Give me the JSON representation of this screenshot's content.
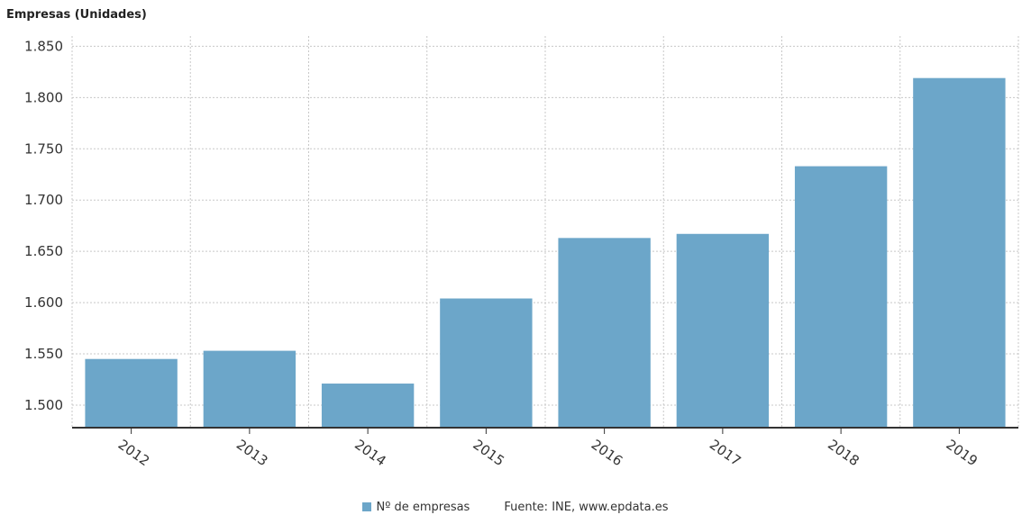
{
  "chart_data": {
    "type": "bar",
    "ylabel": "Empresas (Unidades)",
    "categories": [
      "2012",
      "2013",
      "2014",
      "2015",
      "2016",
      "2017",
      "2018",
      "2019"
    ],
    "series": [
      {
        "name": "Nº de empresas",
        "values": [
          1545,
          1553,
          1521,
          1604,
          1663,
          1667,
          1733,
          1819
        ]
      }
    ],
    "ylim": [
      1478,
      1860
    ],
    "yticks": [
      1500,
      1550,
      1600,
      1650,
      1700,
      1750,
      1800,
      1850
    ],
    "ytick_labels": [
      "1.500",
      "1.550",
      "1.600",
      "1.650",
      "1.700",
      "1.750",
      "1.800",
      "1.850"
    ],
    "grid": true,
    "legend_position": "bottom",
    "colors": {
      "bar": "#6ca6c9",
      "grid": "#c8c8c8",
      "axis": "#333333"
    }
  },
  "legend": {
    "label": "Nº de empresas",
    "source": "Fuente: INE, www.epdata.es"
  }
}
